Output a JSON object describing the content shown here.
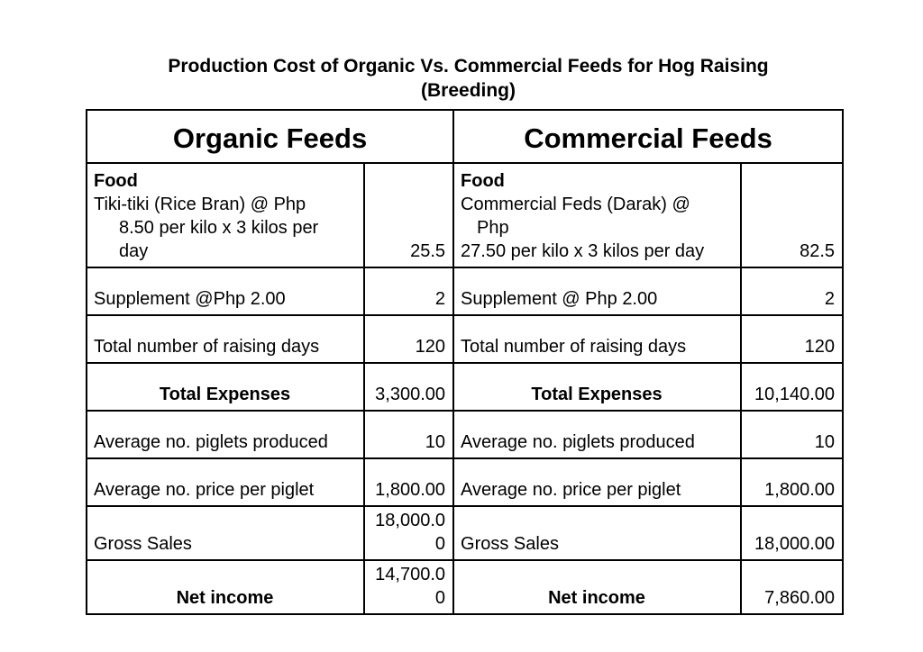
{
  "colors": {
    "background": "#ffffff",
    "border": "#000000",
    "text": "#000000"
  },
  "title": {
    "line1": "Production Cost of Organic Vs. Commercial Feeds for Hog Raising",
    "line2": "(Breeding)"
  },
  "table": {
    "headers": {
      "organic": "Organic Feeds",
      "commercial": "Commercial Feeds"
    },
    "food_row": {
      "organic": {
        "heading": "Food",
        "item": "Tiki-tiki (Rice Bran) @ Php\n8.50 per kilo x 3 kilos per\nday",
        "value": "25.5"
      },
      "commercial": {
        "heading": "Food",
        "item1": "Commercial Feds (Darak) @\nPhp",
        "item2": "27.50 per kilo x 3 kilos per day",
        "value": "82.5"
      }
    },
    "rows": [
      {
        "organic_label": "Supplement @Php 2.00",
        "organic_value": "2",
        "commercial_label": "Supplement @ Php 2.00",
        "commercial_value": "2"
      },
      {
        "organic_label": "Total number of raising days",
        "organic_value": "120",
        "commercial_label": "Total number of raising days",
        "commercial_value": "120"
      },
      {
        "organic_label": "Total Expenses",
        "organic_value": "3,300.00",
        "commercial_label": "Total Expenses",
        "commercial_value": "10,140.00"
      },
      {
        "organic_label": "Average no. piglets produced",
        "organic_value": "10",
        "commercial_label": "Average no. piglets produced",
        "commercial_value": "10"
      },
      {
        "organic_label": "Average no. price per piglet",
        "organic_value": "1,800.00",
        "commercial_label": "Average no. price per piglet",
        "commercial_value": "1,800.00"
      },
      {
        "organic_label": "Gross Sales",
        "organic_value": "18,000.00",
        "commercial_label": "Gross Sales",
        "commercial_value": "18,000.00"
      },
      {
        "organic_label": "Net income",
        "organic_value": "14,700.00",
        "commercial_label": "Net income",
        "commercial_value": "7,860.00"
      }
    ]
  }
}
